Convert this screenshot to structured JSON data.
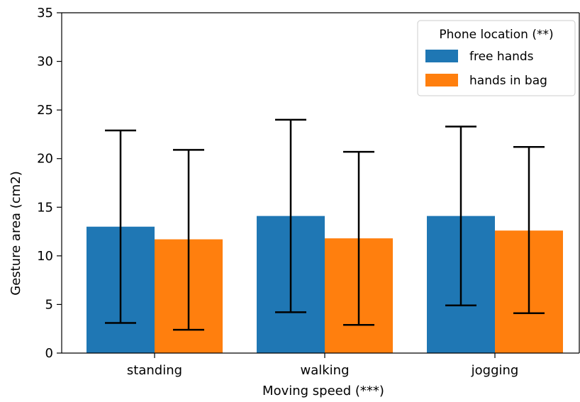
{
  "chart_data": {
    "type": "bar",
    "categories": [
      "standing",
      "walking",
      "jogging"
    ],
    "series": [
      {
        "name": "free hands",
        "color": "#1f77b4",
        "values": [
          13.0,
          14.1,
          14.1
        ],
        "error_low": [
          3.1,
          4.2,
          4.9
        ],
        "error_high": [
          22.9,
          24.0,
          23.3
        ]
      },
      {
        "name": "hands in bag",
        "color": "#ff7f0e",
        "values": [
          11.7,
          11.8,
          12.6
        ],
        "error_low": [
          2.4,
          2.9,
          4.1
        ],
        "error_high": [
          20.9,
          20.7,
          21.2
        ]
      }
    ],
    "title": "",
    "xlabel": "Moving speed (***)",
    "ylabel": "Gesture area (cm2)",
    "ylim": [
      0,
      35
    ],
    "yticks": [
      0,
      5,
      10,
      15,
      20,
      25,
      30,
      35
    ],
    "grid": false,
    "legend": {
      "title": "Phone location (**)",
      "placement": "top-right"
    }
  }
}
